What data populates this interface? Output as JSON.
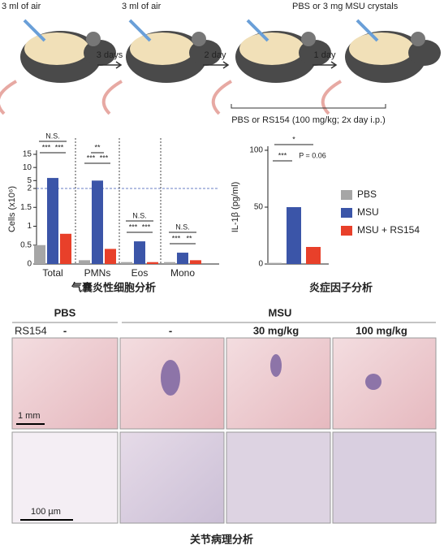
{
  "schematic": {
    "injection_1": "3 ml of air",
    "injection_2": "3 ml of air",
    "challenge": "PBS or 3 mg MSU crystals",
    "interval_1": "3 days",
    "interval_2": "2 day",
    "interval_3": "1 day",
    "treatment": "PBS or  RS154 (100 mg/kg; 2x day i.p.)"
  },
  "chart_data": [
    {
      "type": "bar",
      "title": "气囊炎性细胞分析",
      "y_label": "Cells (x10⁶)",
      "categories": [
        "Total",
        "PMNs",
        "Eos",
        "Mono"
      ],
      "series": [
        {
          "color": "#a6a6a6",
          "values": [
            0.5,
            0.1,
            0.05,
            0.05
          ]
        },
        {
          "color": "#3b55a8",
          "values": [
            6,
            5,
            0.6,
            0.3
          ]
        },
        {
          "color": "#e8402a",
          "values": [
            0.8,
            0.4,
            0.05,
            0.1
          ]
        }
      ],
      "ylim": [
        0,
        15
      ],
      "yticks": [
        0,
        0.5,
        1,
        1.5,
        2,
        5,
        10,
        15
      ],
      "y_break": 2,
      "annotations": [
        "N.S.",
        "***",
        "***",
        "**",
        "***",
        "***",
        "N.S.",
        "***",
        "***",
        "N.S.",
        "***",
        "**"
      ]
    },
    {
      "type": "bar",
      "title": "炎症因子分析",
      "y_label": "IL-1β (pg/ml)",
      "categories": [
        null
      ],
      "series": [
        {
          "name": "PBS",
          "color": "#a6a6a6",
          "values": [
            1
          ]
        },
        {
          "name": "MSU",
          "color": "#3b55a8",
          "values": [
            50
          ]
        },
        {
          "name": "MSU + RS154",
          "color": "#e8402a",
          "values": [
            15
          ]
        }
      ],
      "ylim": [
        0,
        100
      ],
      "yticks": [
        0,
        50,
        100
      ],
      "annotations": [
        "*",
        "***",
        "P = 0.06"
      ]
    }
  ],
  "histology": {
    "title": "关节病理分析",
    "group_pbs": "PBS",
    "group_msu": "MSU",
    "treatment_label": "RS154",
    "doses": [
      "-",
      "-",
      "30 mg/kg",
      "100 mg/kg"
    ],
    "scale_bars": [
      "1 mm",
      "100 µm"
    ]
  }
}
